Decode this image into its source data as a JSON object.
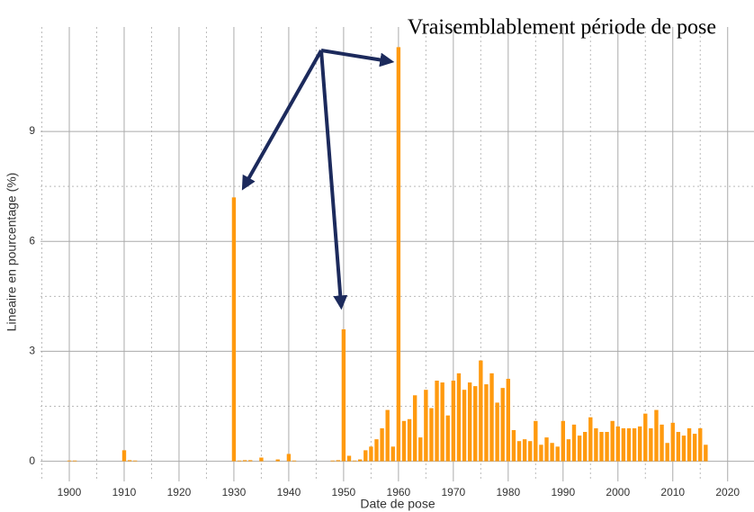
{
  "chart_data": {
    "type": "bar",
    "annotation": "Vraisemblablement période de pose",
    "xlabel": "Date de pose",
    "ylabel": "Lineaire en pourcentage (%)",
    "color": "#ff9a0f",
    "grid": true,
    "x": [
      1900,
      1901,
      1910,
      1911,
      1912,
      1930,
      1931,
      1932,
      1933,
      1935,
      1938,
      1940,
      1941,
      1948,
      1949,
      1950,
      1951,
      1952,
      1953,
      1954,
      1955,
      1956,
      1957,
      1958,
      1959,
      1960,
      1961,
      1962,
      1963,
      1964,
      1965,
      1966,
      1967,
      1968,
      1969,
      1970,
      1971,
      1972,
      1973,
      1974,
      1975,
      1976,
      1977,
      1978,
      1979,
      1980,
      1981,
      1982,
      1983,
      1984,
      1985,
      1986,
      1987,
      1988,
      1989,
      1990,
      1991,
      1992,
      1993,
      1994,
      1995,
      1996,
      1997,
      1998,
      1999,
      2000,
      2001,
      2002,
      2003,
      2004,
      2005,
      2006,
      2007,
      2008,
      2009,
      2010,
      2011,
      2012,
      2013,
      2014,
      2015,
      2016
    ],
    "values": [
      0.02,
      0.02,
      0.3,
      0.03,
      0.02,
      7.2,
      0.02,
      0.03,
      0.03,
      0.1,
      0.05,
      0.2,
      0.02,
      0.02,
      0.03,
      3.6,
      0.15,
      0.02,
      0.05,
      0.3,
      0.4,
      0.6,
      0.9,
      1.4,
      0.4,
      11.3,
      1.1,
      1.15,
      1.8,
      0.65,
      1.95,
      1.45,
      2.2,
      2.15,
      1.25,
      2.2,
      2.4,
      1.95,
      2.15,
      2.05,
      2.75,
      2.1,
      2.4,
      1.6,
      2.0,
      2.25,
      0.85,
      0.55,
      0.6,
      0.55,
      1.1,
      0.45,
      0.65,
      0.5,
      0.4,
      1.1,
      0.6,
      1.0,
      0.7,
      0.8,
      1.2,
      0.9,
      0.8,
      0.8,
      1.1,
      0.95,
      0.9,
      0.9,
      0.9,
      0.95,
      1.3,
      0.9,
      1.4,
      1.0,
      0.5,
      1.05,
      0.8,
      0.7,
      0.9,
      0.75,
      0.9,
      0.45
    ],
    "xlim": [
      1894.75,
      2024.8
    ],
    "ylim": [
      -0.55,
      11.85
    ],
    "xticks": [
      1900,
      1910,
      1920,
      1930,
      1940,
      1950,
      1960,
      1970,
      1980,
      1990,
      2000,
      2010,
      2020
    ],
    "yticks": [
      0,
      3,
      6,
      9
    ]
  }
}
